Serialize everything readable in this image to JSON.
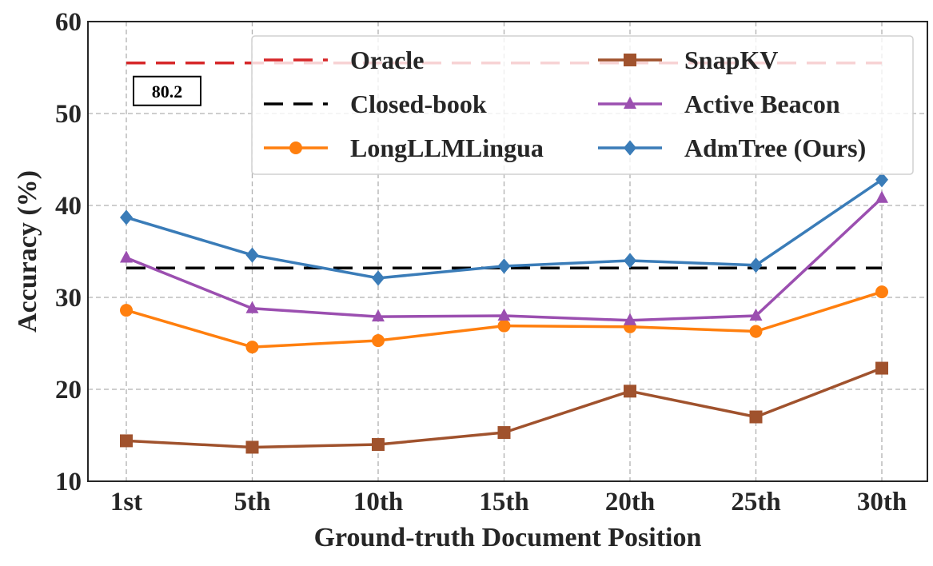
{
  "chart_data": {
    "type": "line",
    "xlabel": "Ground-truth Document Position",
    "ylabel": "Accuracy (%)",
    "categories": [
      "1st",
      "5th",
      "10th",
      "15th",
      "20th",
      "25th",
      "30th"
    ],
    "ylim": [
      10,
      60
    ],
    "yticks": [
      10,
      20,
      30,
      40,
      50,
      60
    ],
    "grid": true,
    "legend_position": "top-right",
    "reference_lines": [
      {
        "name": "Oracle",
        "value": 55.5,
        "color": "#d62728",
        "style": "dashed",
        "annotation": "80.2"
      },
      {
        "name": "Closed-book",
        "value": 33.2,
        "color": "#000000",
        "style": "dashed"
      }
    ],
    "series": [
      {
        "name": "LongLLMLingua",
        "color": "#ff7f0e",
        "marker": "circle",
        "values": [
          28.6,
          24.6,
          25.3,
          26.9,
          26.8,
          26.3,
          30.6
        ]
      },
      {
        "name": "SnapKV",
        "color": "#a0522d",
        "marker": "square",
        "values": [
          14.4,
          13.7,
          14.0,
          15.3,
          19.8,
          17.0,
          22.3
        ]
      },
      {
        "name": "Active Beacon",
        "color": "#9b4fb0",
        "marker": "triangle",
        "values": [
          34.3,
          28.8,
          27.9,
          28.0,
          27.5,
          28.0,
          40.8
        ]
      },
      {
        "name": "AdmTree (Ours)",
        "color": "#3a7cb8",
        "marker": "diamond",
        "values": [
          38.7,
          34.6,
          32.1,
          33.4,
          34.0,
          33.5,
          42.8
        ]
      }
    ],
    "legend_order": [
      "Oracle",
      "SnapKV",
      "Closed-book",
      "Active Beacon",
      "LongLLMLingua",
      "AdmTree (Ours)"
    ]
  }
}
